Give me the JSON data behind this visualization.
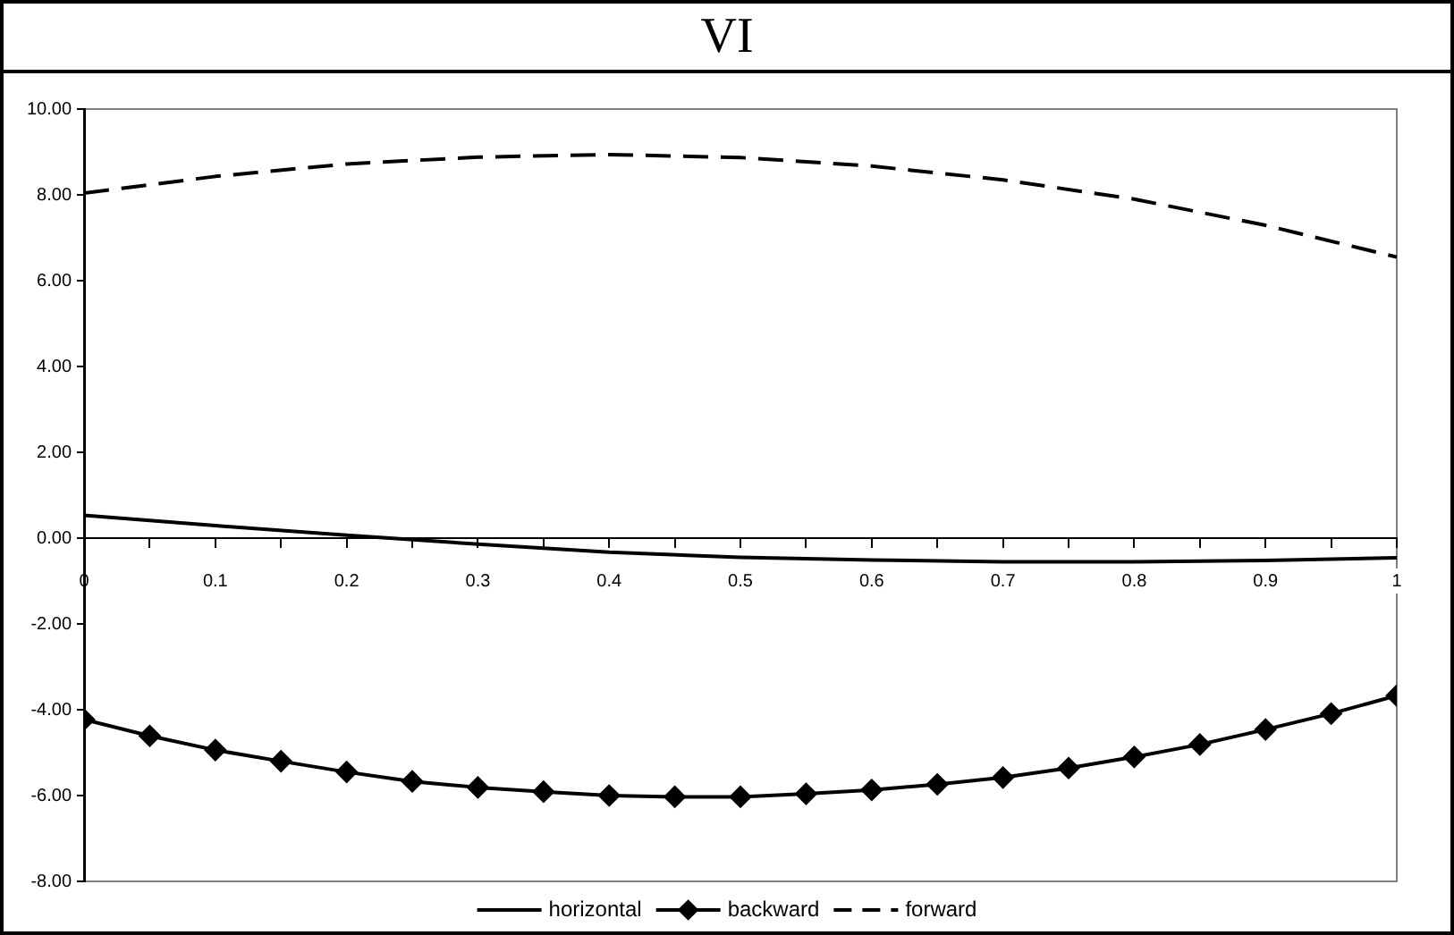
{
  "chart_data": {
    "type": "line",
    "title": "VI",
    "xlim": [
      0,
      1
    ],
    "xticks": [
      0,
      {
        "value": 0.05,
        "label": null
      },
      0.1,
      {
        "value": 0.15,
        "label": null
      },
      0.2,
      {
        "value": 0.25,
        "label": null
      },
      0.3,
      {
        "value": 0.35,
        "label": null
      },
      0.4,
      {
        "value": 0.45,
        "label": null
      },
      0.5,
      {
        "value": 0.55,
        "label": null
      },
      0.6,
      {
        "value": 0.65,
        "label": null
      },
      0.7,
      {
        "value": 0.75,
        "label": null
      },
      0.8,
      {
        "value": 0.85,
        "label": null
      },
      0.9,
      {
        "value": 0.95,
        "label": null
      },
      1
    ],
    "ylim": [
      -8,
      10
    ],
    "yticks": [
      {
        "value": -8,
        "label": "-8.00"
      },
      {
        "value": -6,
        "label": "-6.00"
      },
      {
        "value": -4,
        "label": "-4.00"
      },
      {
        "value": -2,
        "label": "-2.00"
      },
      {
        "value": 0,
        "label": "0.00"
      },
      {
        "value": 2,
        "label": "2.00"
      },
      {
        "value": 4,
        "label": "4.00"
      },
      {
        "value": 6,
        "label": "6.00"
      },
      {
        "value": 8,
        "label": "8.00"
      },
      {
        "value": 10,
        "label": "10.00"
      }
    ],
    "grid": false,
    "legend": "bottom",
    "series": [
      {
        "name": "horizontal",
        "color": "#000000",
        "marker": "none",
        "line_style": "solid",
        "x": [
          0,
          0.1,
          0.2,
          0.3,
          0.4,
          0.5,
          0.6,
          0.7,
          0.8,
          0.9,
          1
        ],
        "values": [
          0.53,
          0.29,
          0.07,
          -0.14,
          -0.33,
          -0.45,
          -0.51,
          -0.55,
          -0.55,
          -0.52,
          -0.46
        ]
      },
      {
        "name": "backward",
        "color": "#000000",
        "marker": "diamond",
        "line_style": "solid",
        "x": [
          0,
          0.05,
          0.1,
          0.15,
          0.2,
          0.25,
          0.3,
          0.35,
          0.4,
          0.45,
          0.5,
          0.55,
          0.6,
          0.65,
          0.7,
          0.75,
          0.8,
          0.85,
          0.9,
          0.95,
          1
        ],
        "values": [
          -4.23,
          -4.61,
          -4.94,
          -5.2,
          -5.45,
          -5.67,
          -5.81,
          -5.91,
          -6.0,
          -6.03,
          -6.03,
          -5.96,
          -5.87,
          -5.74,
          -5.58,
          -5.36,
          -5.1,
          -4.81,
          -4.46,
          -4.09,
          -3.67
        ]
      },
      {
        "name": "forward",
        "color": "#000000",
        "marker": "none",
        "line_style": "dashed",
        "x": [
          0,
          0.1,
          0.2,
          0.3,
          0.4,
          0.5,
          0.6,
          0.7,
          0.8,
          0.9,
          1
        ],
        "values": [
          8.04,
          8.43,
          8.72,
          8.88,
          8.94,
          8.87,
          8.67,
          8.35,
          7.9,
          7.29,
          6.55
        ]
      }
    ]
  }
}
